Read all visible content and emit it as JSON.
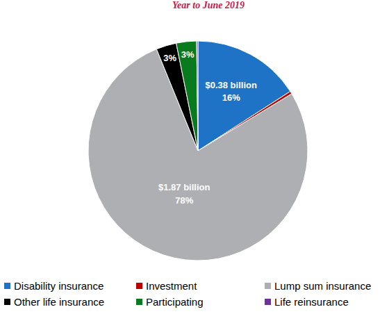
{
  "chart_data": {
    "type": "pie",
    "title": "Year to June 2019",
    "categories": [
      "Disability insurance",
      "Investment",
      "Lump sum insurance",
      "Other life insurance",
      "Participating",
      "Life reinsurance"
    ],
    "values": [
      16,
      0.4,
      78,
      3,
      3,
      0.2
    ],
    "value_labels": [
      "16%",
      null,
      "78%",
      "3%",
      "3%",
      null
    ],
    "amount_labels": [
      "$0.38 billion",
      null,
      "$1.87 billion",
      null,
      null,
      null
    ],
    "colors": [
      "#1f73c6",
      "#c00000",
      "#adafb2",
      "#000000",
      "#0a7a1e",
      "#7030a0"
    ],
    "data_labels": true,
    "legend": "bottom"
  }
}
